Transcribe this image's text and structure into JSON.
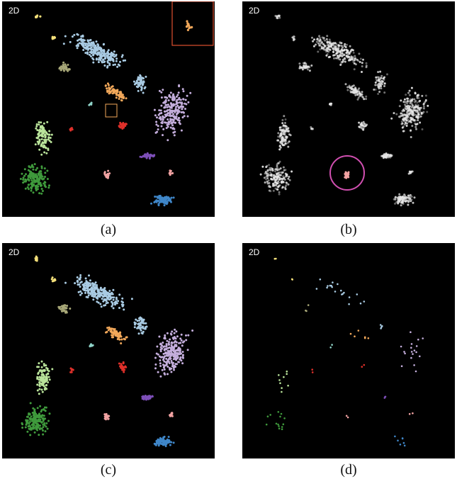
{
  "figure": {
    "panels": [
      {
        "id": "a",
        "label": "(a)",
        "tag": "2D",
        "mode": "full-color",
        "inset": true
      },
      {
        "id": "b",
        "label": "(b)",
        "tag": "2D",
        "mode": "grayscale-highlight"
      },
      {
        "id": "c",
        "label": "(c)",
        "tag": "2D",
        "mode": "full-color"
      },
      {
        "id": "d",
        "label": "(d)",
        "tag": "2D",
        "mode": "sparse"
      }
    ],
    "colors": {
      "yellow": "#f4e07a",
      "lightblue": "#a9cbe3",
      "olive": "#a8a878",
      "orange": "#f2a85a",
      "lavender": "#c4aedc",
      "lightgreen": "#b9e39a",
      "green": "#3f9a3c",
      "red": "#e0302a",
      "purple": "#7d4fb8",
      "pink": "#f2a3a3",
      "blue": "#3f86c8",
      "teal": "#8fd3c8",
      "highlight_circle": "#d04fb0",
      "inset_box": "#e05030"
    }
  }
}
